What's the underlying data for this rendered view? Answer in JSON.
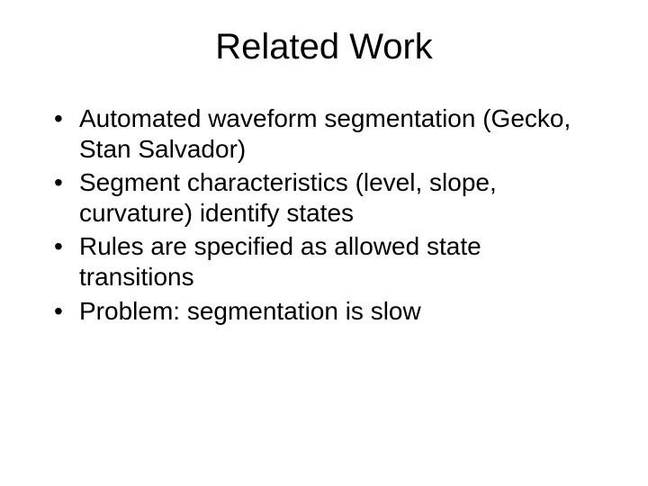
{
  "slide": {
    "background_color": "#ffffff",
    "text_color": "#000000",
    "font_family": "Arial",
    "title": {
      "text": "Related Work",
      "fontsize_pt": 40,
      "align": "center",
      "weight": "normal"
    },
    "bullets": {
      "fontsize_pt": 28,
      "marker": "•",
      "items": [
        "Automated waveform segmentation (Gecko, Stan Salvador)",
        "Segment characteristics (level, slope, curvature) identify states",
        "Rules are specified as allowed state transitions",
        "Problem: segmentation is slow"
      ]
    }
  }
}
